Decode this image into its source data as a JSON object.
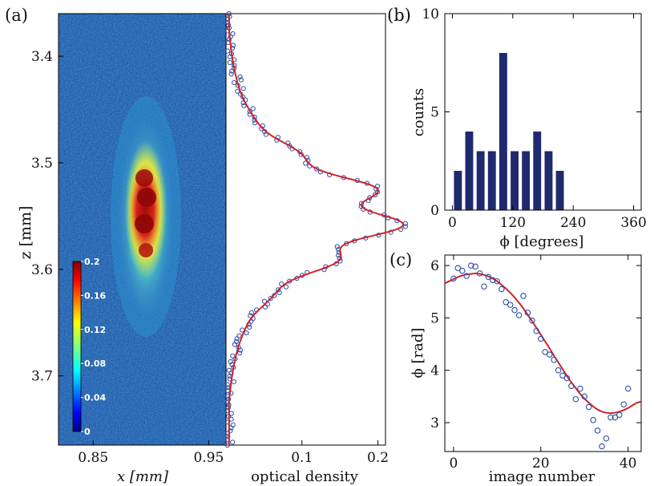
{
  "colors": {
    "axis": "#000000",
    "bar": "#1f2a6e",
    "fit": "#d1232a",
    "marker": "#2c4fa8"
  },
  "chart_data": [
    {
      "id": "a",
      "panel_label": "(a)",
      "type": "heatmap",
      "title": "",
      "xlabel": "x [mm]",
      "ylabel": "z [mm]",
      "x_ticks": [
        0.85,
        0.95
      ],
      "x_tick_labels": [
        "0.85",
        "0.95"
      ],
      "x_range": [
        0.82,
        0.965
      ],
      "y_ticks": [
        3.4,
        3.5,
        3.6,
        3.7
      ],
      "y_tick_labels": [
        "3.4",
        "3.5",
        "3.6",
        "3.7"
      ],
      "y_range": [
        3.36,
        3.765
      ],
      "colorbar": {
        "ticks": [
          0,
          0.04,
          0.08,
          0.12,
          0.16,
          0.2
        ],
        "tick_labels": [
          "0",
          "0.04",
          "0.08",
          "0.12",
          "0.16",
          "0.2"
        ],
        "range": [
          0,
          0.2
        ]
      },
      "cloud": {
        "x_center": 0.89,
        "z_center": 3.55,
        "peak_od": 0.2
      }
    },
    {
      "id": "a-profile",
      "type": "scatter",
      "xlabel": "optical density",
      "x_ticks": [
        0.1,
        0.2
      ],
      "x_tick_labels": [
        "0.1",
        "0.2"
      ],
      "x_range": [
        0.0,
        0.21
      ],
      "y_range": [
        3.36,
        3.765
      ],
      "series": [
        {
          "name": "data",
          "marker": "open-circle"
        },
        {
          "name": "fit",
          "style": "line"
        }
      ]
    },
    {
      "id": "b",
      "panel_label": "(b)",
      "type": "bar",
      "title": "",
      "xlabel": "ϕ [degrees]",
      "ylabel": "counts",
      "x_ticks": [
        0,
        120,
        240,
        360
      ],
      "x_tick_labels": [
        "0",
        "120",
        "240",
        "360"
      ],
      "x_range": [
        -15,
        375
      ],
      "y_ticks": [
        0,
        5,
        10
      ],
      "y_tick_labels": [
        "0",
        "5",
        "10"
      ],
      "ylim": [
        0,
        10
      ],
      "bin_width": 22.5,
      "categories": [
        11,
        33.5,
        56,
        78.5,
        101,
        123.5,
        146,
        168.5,
        191,
        213.5
      ],
      "values": [
        2,
        4,
        3,
        3,
        8,
        3,
        3,
        4,
        3,
        2
      ]
    },
    {
      "id": "c",
      "panel_label": "(c)",
      "type": "scatter",
      "title": "",
      "xlabel": "image number",
      "ylabel": "ϕ [rad]",
      "x_ticks": [
        0,
        20,
        40
      ],
      "x_tick_labels": [
        "0",
        "20",
        "40"
      ],
      "x_range": [
        -2,
        43
      ],
      "y_ticks": [
        3,
        4,
        5,
        6
      ],
      "y_tick_labels": [
        "3",
        "4",
        "5",
        "6"
      ],
      "ylim": [
        2.45,
        6.2
      ],
      "series": [
        {
          "name": "data",
          "marker": "open-circle",
          "x": [
            0,
            1,
            2,
            3,
            4,
            5,
            6,
            7,
            8,
            9,
            10,
            11,
            12,
            13,
            14,
            15,
            16,
            17,
            18,
            19,
            20,
            21,
            22,
            23,
            24,
            25,
            26,
            27,
            28,
            29,
            30,
            31,
            32,
            33,
            34,
            35,
            36,
            37,
            38,
            39,
            40
          ],
          "y": [
            5.75,
            5.95,
            5.9,
            5.8,
            6.0,
            5.98,
            5.85,
            5.6,
            5.78,
            5.72,
            5.7,
            5.55,
            5.3,
            5.25,
            5.15,
            5.05,
            5.42,
            5.1,
            4.95,
            4.75,
            4.6,
            4.35,
            4.3,
            4.2,
            4.0,
            3.9,
            3.85,
            3.7,
            3.45,
            3.65,
            3.5,
            3.3,
            3.05,
            2.85,
            2.55,
            2.7,
            3.1,
            3.1,
            3.15,
            3.35,
            3.65
          ]
        },
        {
          "name": "fit",
          "style": "line",
          "x": [
            -2,
            -1,
            0,
            1,
            2,
            3,
            4,
            5,
            6,
            7,
            8,
            9,
            10,
            11,
            12,
            13,
            14,
            15,
            16,
            17,
            18,
            19,
            20,
            21,
            22,
            23,
            24,
            25,
            26,
            27,
            28,
            29,
            30,
            31,
            32,
            33,
            34,
            35,
            36,
            37,
            38,
            39,
            40,
            41,
            42,
            43
          ],
          "y": [
            5.66,
            5.7,
            5.74,
            5.78,
            5.81,
            5.83,
            5.84,
            5.85,
            5.84,
            5.82,
            5.79,
            5.75,
            5.7,
            5.63,
            5.56,
            5.48,
            5.39,
            5.29,
            5.18,
            5.06,
            4.94,
            4.81,
            4.68,
            4.55,
            4.42,
            4.28,
            4.15,
            4.02,
            3.89,
            3.77,
            3.66,
            3.55,
            3.46,
            3.38,
            3.31,
            3.25,
            3.21,
            3.19,
            3.18,
            3.19,
            3.21,
            3.24,
            3.28,
            3.33,
            3.38,
            3.4
          ]
        }
      ]
    }
  ]
}
